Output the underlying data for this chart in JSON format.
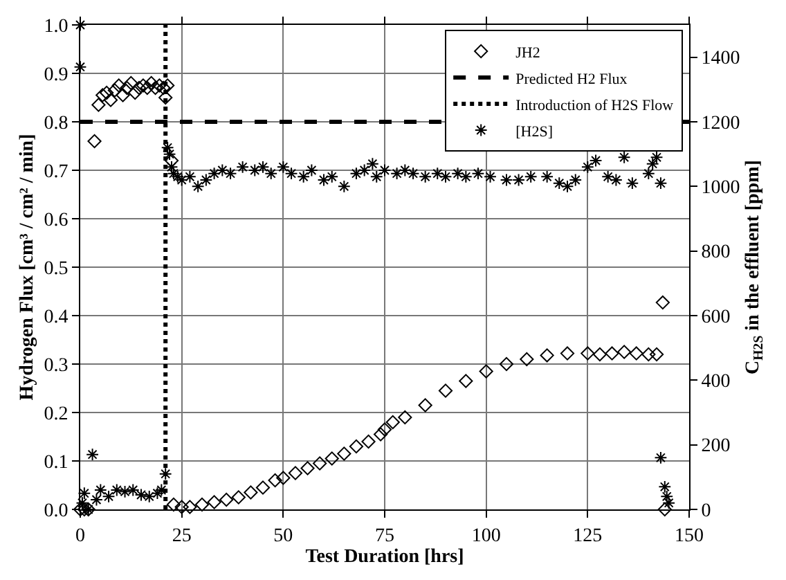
{
  "chart_data": {
    "type": "scatter",
    "xlabel": "Test Duration [hrs]",
    "ylabel": "Hydrogen Flux [cm³ / cm² / min]",
    "y2label": "C$_{H2S}$ in the effluent [ppm]",
    "xlim": [
      0,
      150
    ],
    "xticks": [
      0,
      25,
      50,
      75,
      100,
      125,
      150
    ],
    "ylim": [
      0,
      1
    ],
    "yticks": [
      {
        "value": 0,
        "label": "0.0"
      },
      {
        "value": 0.1,
        "label": "0.1"
      },
      {
        "value": 0.2,
        "label": "0.2"
      },
      {
        "value": 0.3,
        "label": "0.3"
      },
      {
        "value": 0.4,
        "label": "0.4"
      },
      {
        "value": 0.5,
        "label": "0.5"
      },
      {
        "value": 0.6,
        "label": "0.6"
      },
      {
        "value": 0.7,
        "label": "0.7"
      },
      {
        "value": 0.8,
        "label": "0.8"
      },
      {
        "value": 0.9,
        "label": "0.9"
      },
      {
        "value": 1,
        "label": "1.0"
      }
    ],
    "y2lim": [
      0,
      1500
    ],
    "y2ticks": [
      0,
      200,
      400,
      600,
      800,
      1000,
      1200,
      1400
    ],
    "grid": true,
    "legend": "top right",
    "series": [
      {
        "name": "JH2",
        "type": "scatter",
        "marker": "diamond",
        "color": "#000000",
        "x": [
          0,
          1,
          2,
          3.5,
          4.5,
          5.5,
          6.5,
          7.5,
          8.5,
          9.5,
          10.5,
          11.5,
          12.5,
          13.5,
          14.5,
          15.5,
          16.5,
          17.5,
          18.5,
          19.5,
          20.5,
          21,
          21.5,
          22.5,
          23,
          25,
          27,
          30,
          33,
          36,
          39,
          42,
          45,
          48,
          50,
          53,
          56,
          59,
          62,
          65,
          68,
          71,
          74,
          75,
          77,
          80,
          85,
          90,
          95,
          100,
          105,
          110,
          115,
          120,
          125,
          128,
          131,
          134,
          137,
          140,
          142,
          143.5,
          144
        ],
        "values": [
          0,
          0,
          0,
          0.76,
          0.835,
          0.855,
          0.86,
          0.845,
          0.865,
          0.875,
          0.855,
          0.87,
          0.88,
          0.86,
          0.87,
          0.875,
          0.87,
          0.88,
          0.87,
          0.875,
          0.87,
          0.85,
          0.875,
          0.72,
          0.01,
          0.005,
          0.005,
          0.01,
          0.015,
          0.02,
          0.025,
          0.035,
          0.045,
          0.06,
          0.065,
          0.075,
          0.085,
          0.095,
          0.105,
          0.115,
          0.13,
          0.14,
          0.155,
          0.165,
          0.18,
          0.19,
          0.215,
          0.245,
          0.265,
          0.285,
          0.3,
          0.31,
          0.318,
          0.322,
          0.322,
          0.32,
          0.322,
          0.325,
          0.322,
          0.32,
          0.32,
          0.427,
          0
        ]
      },
      {
        "name": "Predicted H2 Flux",
        "type": "line",
        "marker": "none",
        "line_style": "dashed",
        "color": "#000000",
        "x": [
          0,
          150
        ],
        "values": [
          0.8,
          0.8
        ]
      },
      {
        "name": "Introduction of H2S Flow",
        "type": "line",
        "marker": "none",
        "line_style": "dotted",
        "color": "#000000",
        "x": [
          21,
          21
        ],
        "values": [
          0,
          1
        ]
      },
      {
        "name": "[H2S]",
        "type": "scatter",
        "marker": "cross",
        "axis": "y2",
        "color": "#000000",
        "x": [
          0,
          0,
          0.5,
          1,
          2,
          3,
          4,
          5,
          7,
          9,
          11,
          13,
          15,
          17,
          19,
          20,
          21,
          21.5,
          22,
          22.5,
          23,
          24,
          25,
          27,
          29,
          31,
          33,
          35,
          37,
          40,
          43,
          45,
          47,
          50,
          52,
          55,
          57,
          60,
          62,
          65,
          68,
          70,
          72,
          73,
          75,
          78,
          80,
          82,
          85,
          88,
          90,
          93,
          95,
          98,
          101,
          105,
          108,
          111,
          115,
          118,
          120,
          122,
          125,
          127,
          130,
          132,
          134,
          136,
          140,
          141,
          142,
          143,
          143,
          144,
          144.5,
          145
        ],
        "values": [
          1500,
          1370,
          20,
          50,
          0,
          170,
          30,
          60,
          40,
          60,
          55,
          60,
          45,
          40,
          50,
          60,
          110,
          1120,
          1100,
          1060,
          1040,
          1030,
          1020,
          1030,
          1000,
          1020,
          1040,
          1050,
          1040,
          1060,
          1050,
          1060,
          1040,
          1060,
          1040,
          1030,
          1050,
          1020,
          1030,
          1000,
          1040,
          1050,
          1070,
          1030,
          1050,
          1040,
          1050,
          1040,
          1030,
          1040,
          1030,
          1040,
          1030,
          1040,
          1030,
          1020,
          1020,
          1030,
          1030,
          1010,
          1000,
          1020,
          1060,
          1080,
          1030,
          1020,
          1090,
          1010,
          1040,
          1070,
          1090,
          1010,
          160,
          70,
          40,
          20
        ]
      }
    ]
  }
}
